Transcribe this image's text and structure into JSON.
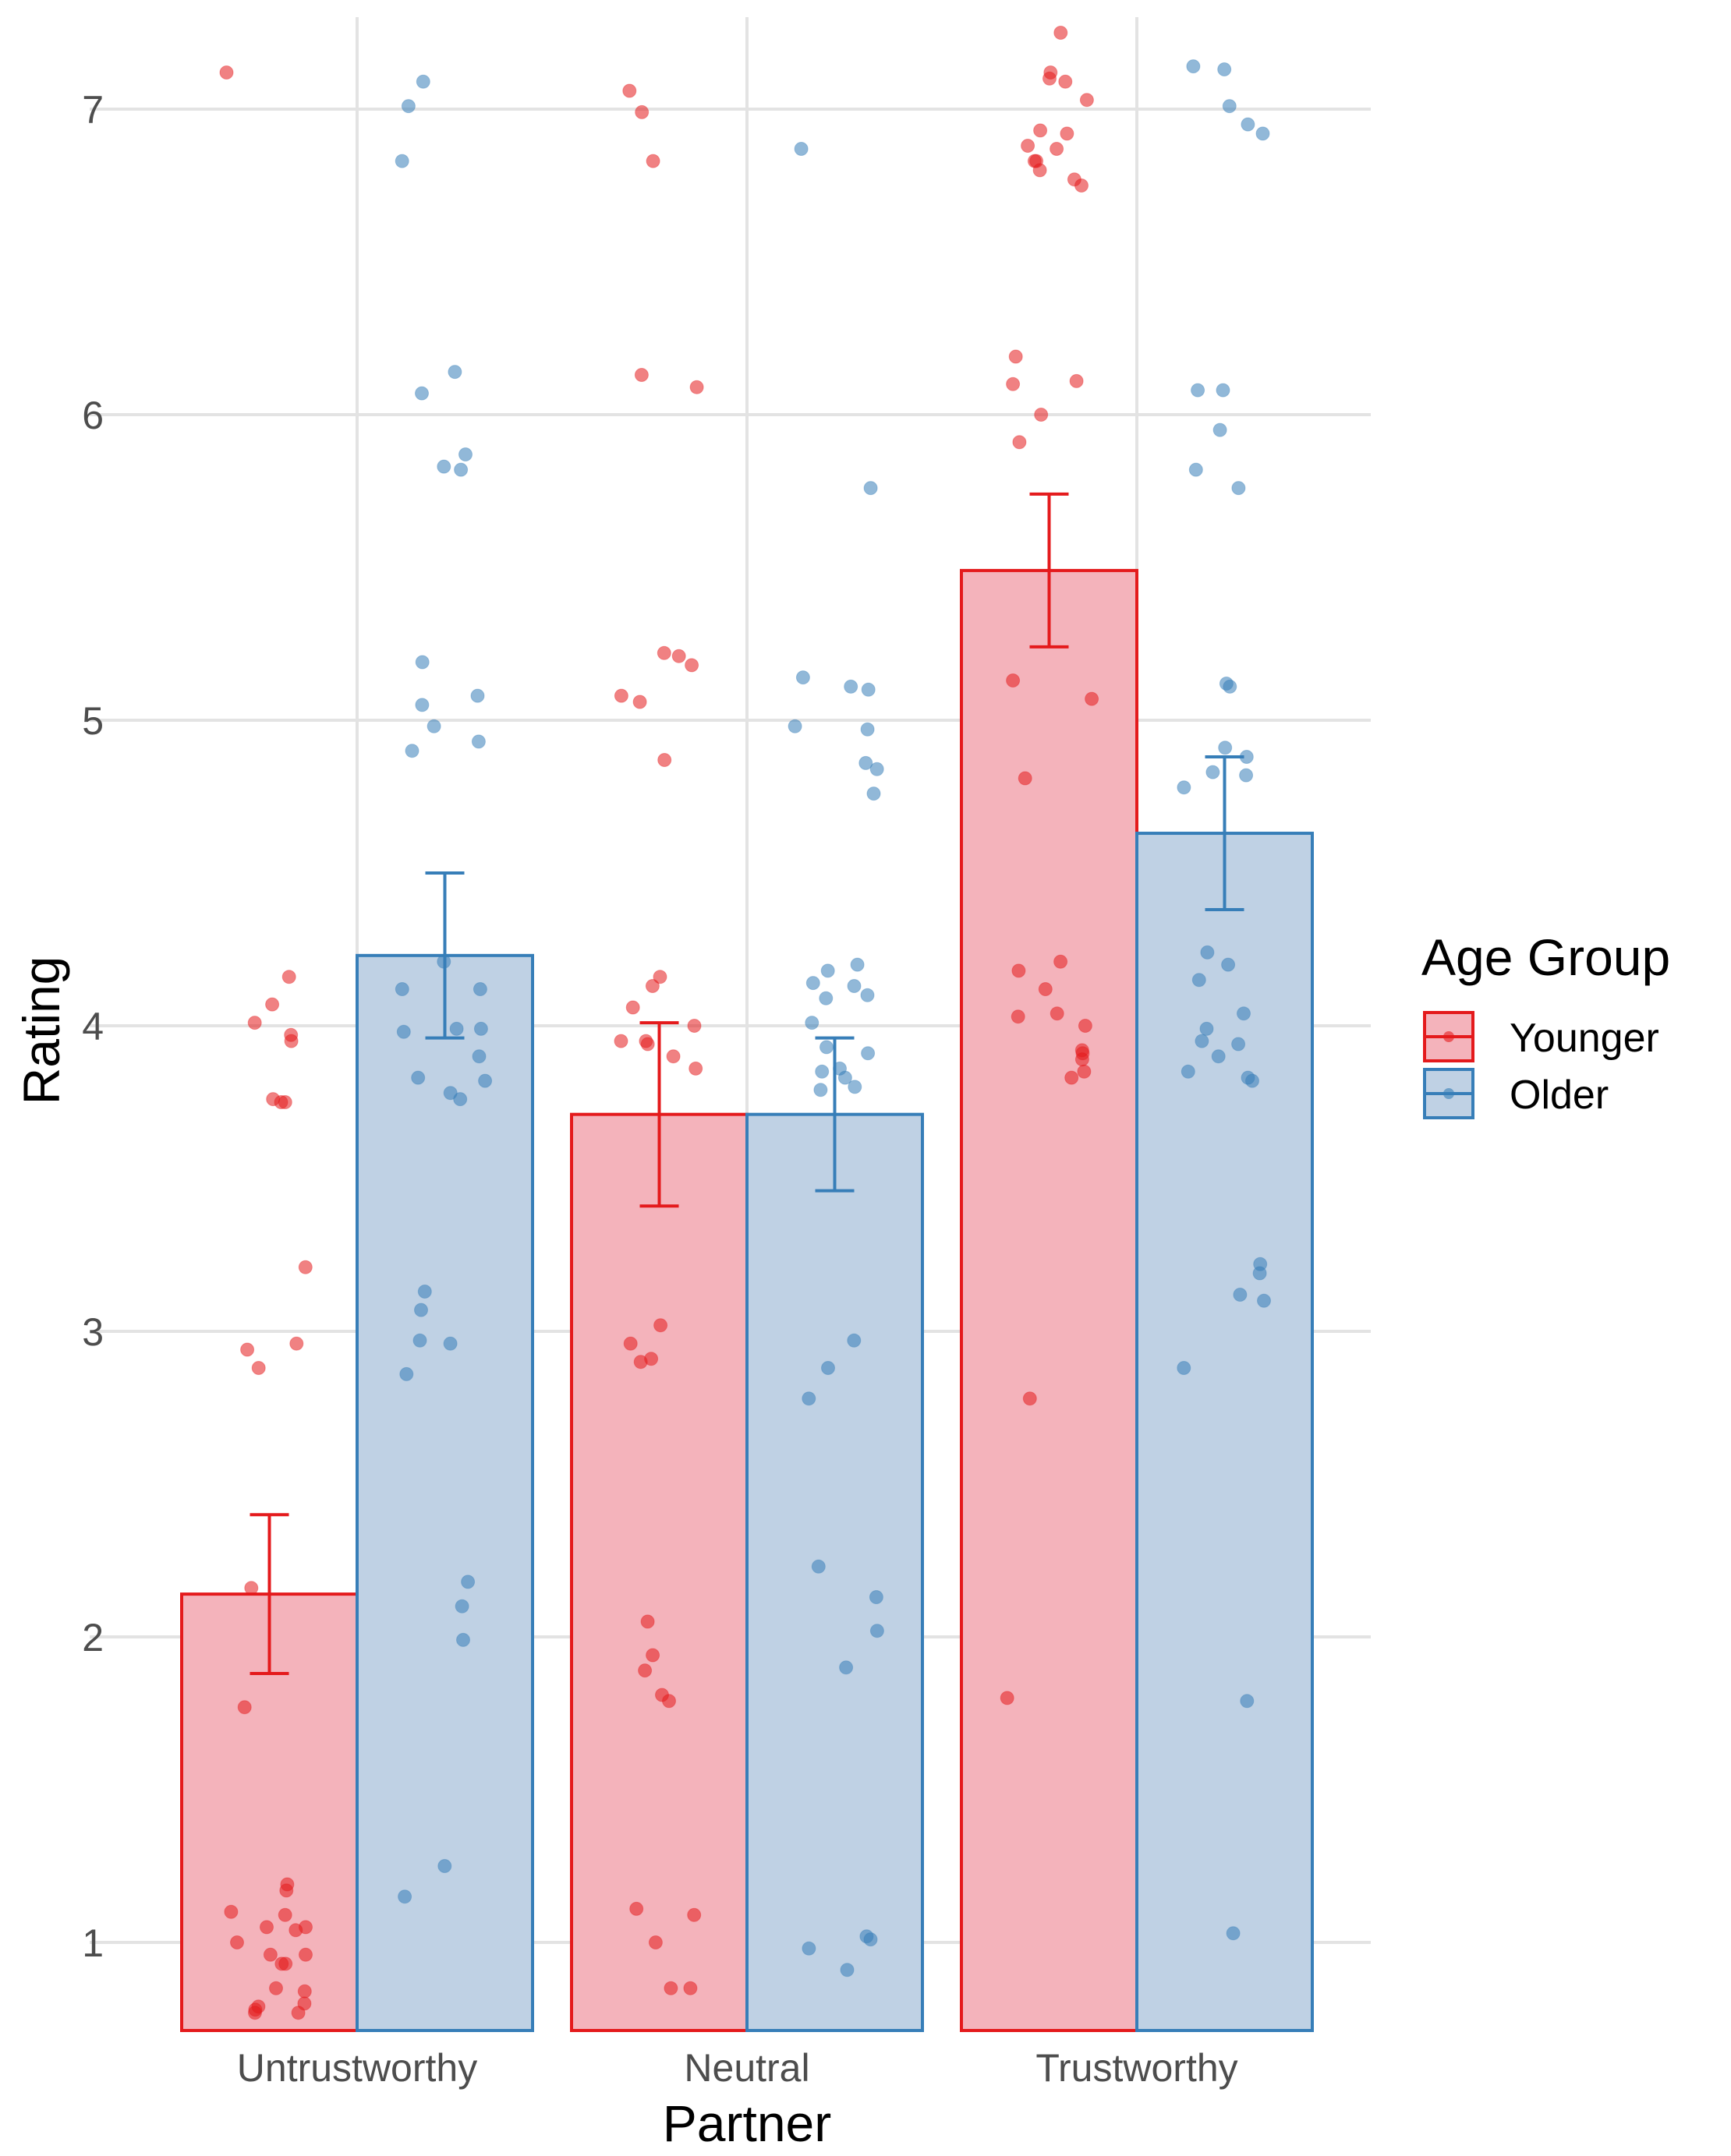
{
  "chart_data": {
    "type": "bar",
    "title": "",
    "xlabel": "Partner",
    "ylabel": "Rating",
    "categories": [
      "Untrustworthy",
      "Neutral",
      "Trustworthy"
    ],
    "ylim": [
      0.7,
      7.3
    ],
    "yticks": [
      1,
      2,
      3,
      4,
      5,
      6,
      7
    ],
    "grid": true,
    "legend": {
      "title": "Age Group",
      "position": "right"
    },
    "series": [
      {
        "name": "Younger",
        "color": "#E41A1C",
        "fill": "#F4B3BB",
        "values": [
          2.14,
          3.71,
          5.49
        ],
        "error": [
          0.26,
          0.3,
          0.25
        ],
        "points": [
          [
            7.12,
            3.21,
            2.16,
            1.77,
            4.16,
            4.07,
            4.01,
            3.97,
            3.95,
            3.76,
            3.75,
            3.75,
            2.96,
            2.94,
            2.88,
            1.19,
            1.17,
            1.1,
            1.09,
            1.05,
            1.05,
            1.04,
            1.0,
            0.96,
            0.96,
            0.93,
            0.93,
            0.85,
            0.84,
            0.8,
            0.79,
            0.78,
            0.77,
            0.77
          ],
          [
            7.06,
            6.99,
            6.83,
            6.13,
            6.09,
            5.22,
            5.21,
            5.18,
            5.08,
            5.06,
            4.87,
            4.16,
            4.13,
            4.06,
            4.0,
            3.95,
            3.94,
            3.95,
            3.9,
            3.86,
            3.02,
            2.96,
            2.91,
            2.9,
            2.05,
            1.94,
            1.89,
            1.81,
            1.79,
            1.11,
            1.09,
            1.0,
            0.85,
            0.85
          ],
          [
            7.25,
            7.12,
            7.1,
            7.09,
            7.03,
            6.93,
            6.92,
            6.88,
            6.87,
            6.83,
            6.83,
            6.8,
            6.77,
            6.75,
            6.19,
            6.11,
            6.1,
            6.0,
            5.91,
            5.13,
            5.07,
            4.81,
            4.21,
            4.18,
            4.12,
            4.04,
            4.03,
            4.0,
            3.92,
            3.91,
            3.89,
            3.85,
            3.83,
            2.78,
            1.8
          ]
        ]
      },
      {
        "name": "Older",
        "color": "#377EB8",
        "fill": "#BFD1E4",
        "values": [
          4.23,
          3.71,
          4.63
        ],
        "error": [
          0.27,
          0.25,
          0.25
        ],
        "points": [
          [
            7.09,
            7.01,
            6.83,
            6.14,
            6.07,
            5.87,
            5.83,
            5.82,
            5.19,
            5.08,
            5.05,
            4.98,
            4.93,
            4.9,
            4.21,
            4.12,
            4.12,
            3.99,
            3.99,
            3.98,
            3.9,
            3.83,
            3.82,
            3.78,
            3.76,
            3.13,
            3.07,
            2.97,
            2.96,
            2.86,
            2.18,
            2.1,
            1.99,
            1.25,
            1.15
          ],
          [
            6.87,
            5.76,
            5.14,
            5.11,
            5.1,
            4.98,
            4.97,
            4.86,
            4.84,
            4.76,
            4.2,
            4.18,
            4.14,
            4.13,
            4.1,
            4.09,
            4.01,
            3.93,
            3.91,
            3.86,
            3.85,
            3.83,
            3.8,
            3.79,
            2.97,
            2.88,
            2.78,
            2.23,
            2.13,
            2.02,
            1.9,
            1.02,
            1.01,
            0.98,
            0.91
          ],
          [
            7.14,
            7.13,
            7.01,
            6.95,
            6.92,
            6.08,
            6.08,
            5.95,
            5.82,
            5.76,
            5.12,
            5.11,
            4.91,
            4.88,
            4.83,
            4.82,
            4.78,
            4.24,
            4.2,
            4.15,
            4.04,
            3.99,
            3.95,
            3.94,
            3.9,
            3.85,
            3.83,
            3.82,
            3.22,
            3.19,
            3.12,
            3.1,
            2.88,
            1.79,
            1.03
          ]
        ]
      }
    ]
  }
}
